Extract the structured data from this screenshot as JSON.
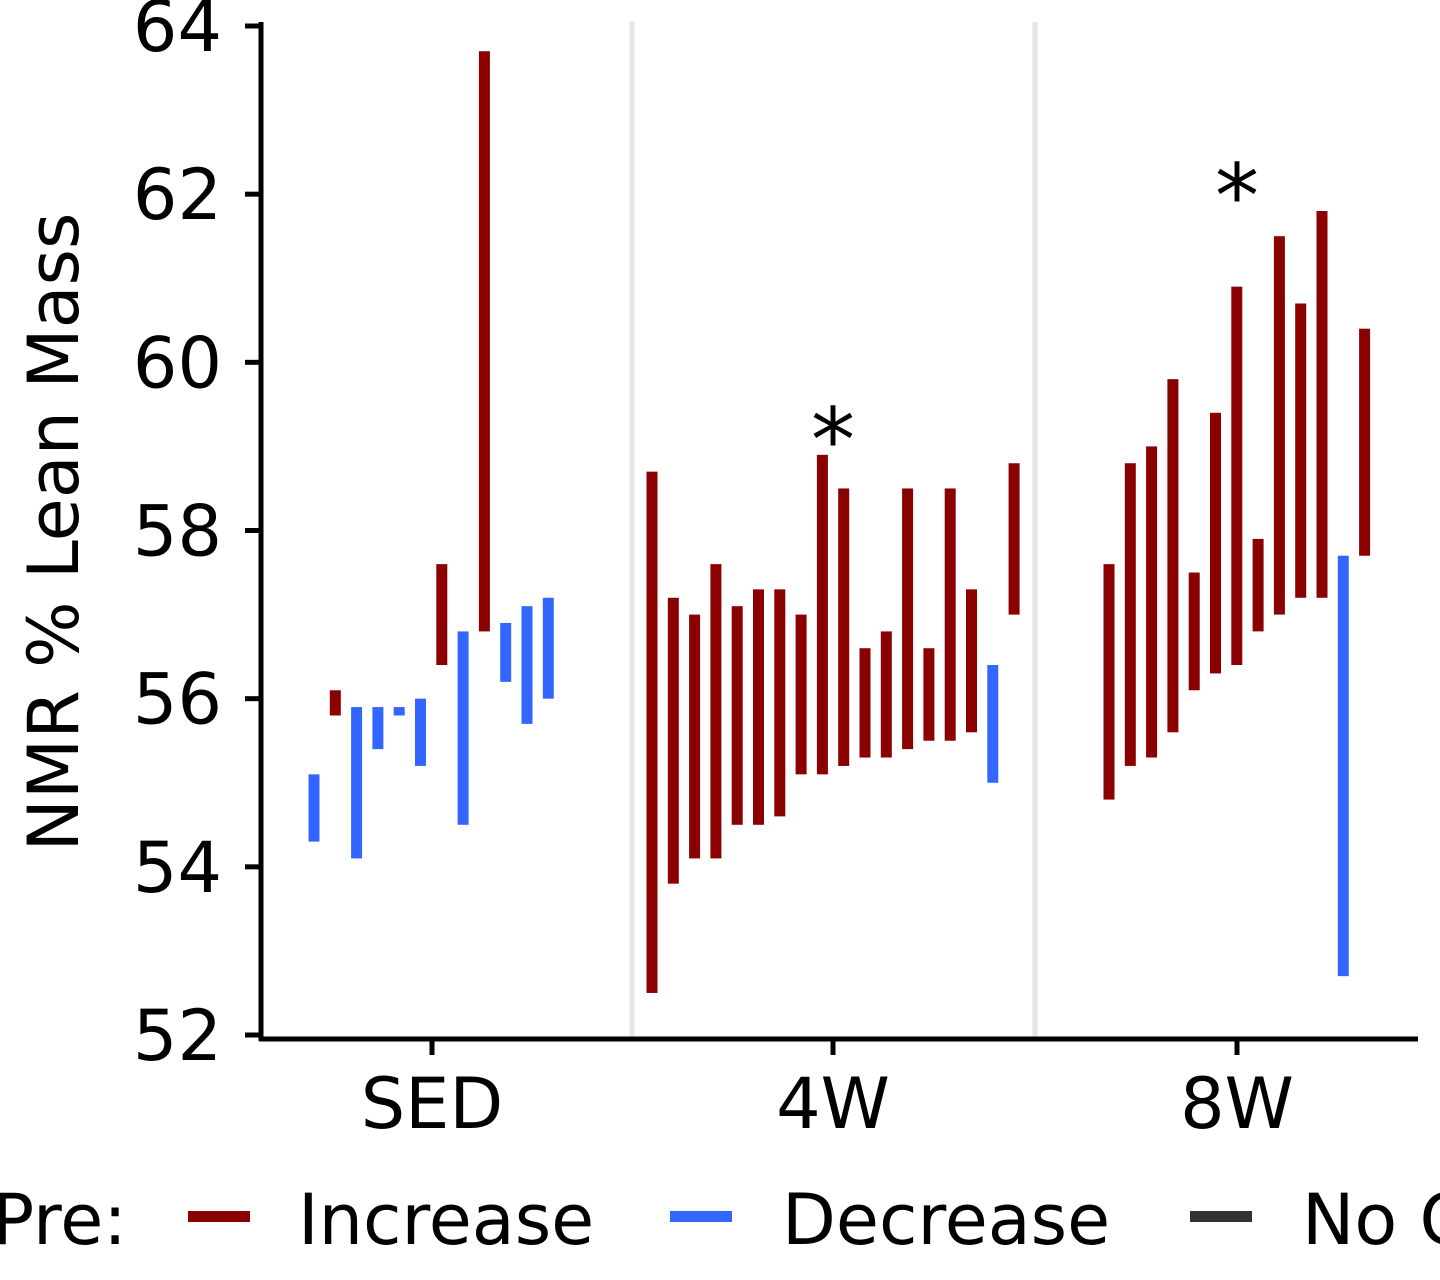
{
  "chart_data": {
    "type": "range-bar",
    "ylabel": "NMR % Lean Mass",
    "ylim": [
      52,
      64
    ],
    "yticks": [
      52,
      54,
      56,
      58,
      60,
      62,
      64
    ],
    "categories": [
      "SED",
      "4W",
      "8W"
    ],
    "grid": "vertical separators between groups",
    "legend": {
      "placement": "bottom",
      "title": "Pre:",
      "entries": [
        {
          "name": "Increase",
          "color": "#8b0000"
        },
        {
          "name": "Decrease",
          "color": "#3366ff"
        },
        {
          "name": "No C",
          "color": "#333333"
        }
      ]
    },
    "colors": {
      "Increase": "#8b0000",
      "Decrease": "#3366ff",
      "No Change": "#333333"
    },
    "groups": [
      {
        "category": "SED",
        "annotation": "",
        "bars": [
          {
            "low": 54.3,
            "high": 55.1,
            "direction": "Decrease"
          },
          {
            "low": 55.8,
            "high": 56.1,
            "direction": "Increase"
          },
          {
            "low": 54.1,
            "high": 55.9,
            "direction": "Decrease"
          },
          {
            "low": 55.4,
            "high": 55.9,
            "direction": "Decrease"
          },
          {
            "low": 55.8,
            "high": 55.9,
            "direction": "Decrease"
          },
          {
            "low": 55.2,
            "high": 56.0,
            "direction": "Decrease"
          },
          {
            "low": 56.4,
            "high": 57.6,
            "direction": "Increase"
          },
          {
            "low": 54.5,
            "high": 56.8,
            "direction": "Decrease"
          },
          {
            "low": 56.8,
            "high": 63.7,
            "direction": "Increase"
          },
          {
            "low": 56.2,
            "high": 56.9,
            "direction": "Decrease"
          },
          {
            "low": 55.7,
            "high": 57.1,
            "direction": "Decrease"
          },
          {
            "low": 56.0,
            "high": 57.2,
            "direction": "Decrease"
          }
        ]
      },
      {
        "category": "4W",
        "annotation": "*",
        "bars": [
          {
            "low": 52.5,
            "high": 58.7,
            "direction": "Increase"
          },
          {
            "low": 53.8,
            "high": 57.2,
            "direction": "Increase"
          },
          {
            "low": 54.1,
            "high": 57.0,
            "direction": "Increase"
          },
          {
            "low": 54.1,
            "high": 57.6,
            "direction": "Increase"
          },
          {
            "low": 54.5,
            "high": 57.1,
            "direction": "Increase"
          },
          {
            "low": 54.5,
            "high": 57.3,
            "direction": "Increase"
          },
          {
            "low": 54.6,
            "high": 57.3,
            "direction": "Increase"
          },
          {
            "low": 55.1,
            "high": 57.0,
            "direction": "Increase"
          },
          {
            "low": 55.1,
            "high": 58.9,
            "direction": "Increase"
          },
          {
            "low": 55.2,
            "high": 58.5,
            "direction": "Increase"
          },
          {
            "low": 55.3,
            "high": 56.6,
            "direction": "Increase"
          },
          {
            "low": 55.3,
            "high": 56.8,
            "direction": "Increase"
          },
          {
            "low": 55.4,
            "high": 58.5,
            "direction": "Increase"
          },
          {
            "low": 55.5,
            "high": 56.6,
            "direction": "Increase"
          },
          {
            "low": 55.5,
            "high": 58.5,
            "direction": "Increase"
          },
          {
            "low": 55.6,
            "high": 57.3,
            "direction": "Increase"
          },
          {
            "low": 55.0,
            "high": 56.4,
            "direction": "Decrease"
          },
          {
            "low": 57.0,
            "high": 58.8,
            "direction": "Increase"
          }
        ]
      },
      {
        "category": "8W",
        "annotation": "*",
        "bars": [
          {
            "low": 54.8,
            "high": 57.6,
            "direction": "Increase"
          },
          {
            "low": 55.2,
            "high": 58.8,
            "direction": "Increase"
          },
          {
            "low": 55.3,
            "high": 59.0,
            "direction": "Increase"
          },
          {
            "low": 55.6,
            "high": 59.8,
            "direction": "Increase"
          },
          {
            "low": 56.1,
            "high": 57.5,
            "direction": "Increase"
          },
          {
            "low": 56.3,
            "high": 59.4,
            "direction": "Increase"
          },
          {
            "low": 56.4,
            "high": 60.9,
            "direction": "Increase"
          },
          {
            "low": 56.8,
            "high": 57.9,
            "direction": "Increase"
          },
          {
            "low": 57.0,
            "high": 61.5,
            "direction": "Increase"
          },
          {
            "low": 57.2,
            "high": 60.7,
            "direction": "Increase"
          },
          {
            "low": 57.2,
            "high": 61.8,
            "direction": "Increase"
          },
          {
            "low": 52.7,
            "high": 57.7,
            "direction": "Decrease"
          },
          {
            "low": 57.7,
            "high": 60.4,
            "direction": "Increase"
          }
        ]
      }
    ]
  }
}
